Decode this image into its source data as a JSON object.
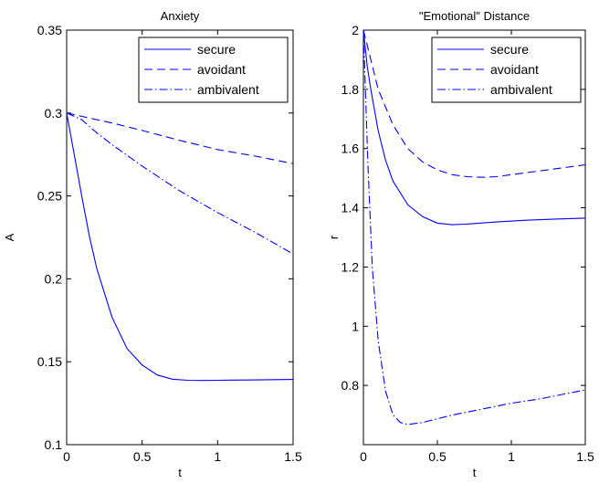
{
  "chart_data": [
    {
      "type": "line",
      "title": "Anxiety",
      "xlabel": "t",
      "ylabel": "A",
      "xlim": [
        0,
        1.5
      ],
      "ylim": [
        0.1,
        0.35
      ],
      "xticks": [
        "0",
        "0.5",
        "1",
        "1.5"
      ],
      "yticks": [
        "0.1",
        "0.15",
        "0.2",
        "0.25",
        "0.3",
        "0.35"
      ],
      "xtick_values": [
        0,
        0.5,
        1,
        1.5
      ],
      "ytick_values": [
        0.1,
        0.15,
        0.2,
        0.25,
        0.3,
        0.35
      ],
      "grid": false,
      "legend_position": "top-right",
      "series": [
        {
          "name": "secure",
          "style": "solid",
          "color": "#0000ff",
          "x": [
            0,
            0.05,
            0.1,
            0.15,
            0.2,
            0.3,
            0.4,
            0.5,
            0.6,
            0.7,
            0.8,
            0.9,
            1.0,
            1.2,
            1.5
          ],
          "y": [
            0.3,
            0.275,
            0.25,
            0.226,
            0.206,
            0.177,
            0.158,
            0.148,
            0.142,
            0.1395,
            0.1388,
            0.1387,
            0.1388,
            0.139,
            0.1393
          ]
        },
        {
          "name": "avoidant",
          "style": "dashed",
          "color": "#0000ff",
          "x": [
            0,
            0.1,
            0.3,
            0.5,
            0.75,
            1.0,
            1.25,
            1.5
          ],
          "y": [
            0.3,
            0.298,
            0.294,
            0.2895,
            0.2835,
            0.278,
            0.274,
            0.2695
          ]
        },
        {
          "name": "ambivalent",
          "style": "dashdot",
          "color": "#0000ff",
          "x": [
            0,
            0.1,
            0.2,
            0.3,
            0.5,
            0.75,
            1.0,
            1.25,
            1.5
          ],
          "y": [
            0.3,
            0.296,
            0.288,
            0.281,
            0.268,
            0.253,
            0.24,
            0.228,
            0.215
          ]
        }
      ]
    },
    {
      "type": "line",
      "title": "\"Emotional\" Distance",
      "xlabel": "t",
      "ylabel": "r",
      "xlim": [
        0,
        1.5
      ],
      "ylim": [
        0.6,
        2
      ],
      "xticks": [
        "0",
        "0.5",
        "1",
        "1.5"
      ],
      "yticks": [
        "0.8",
        "1",
        "1.2",
        "1.4",
        "1.6",
        "1.8",
        "2"
      ],
      "xtick_values": [
        0,
        0.5,
        1,
        1.5
      ],
      "ytick_values": [
        0.8,
        1,
        1.2,
        1.4,
        1.6,
        1.8,
        2
      ],
      "grid": false,
      "legend_position": "top-right",
      "series": [
        {
          "name": "secure",
          "style": "solid",
          "color": "#0000ff",
          "x": [
            0,
            0.025,
            0.05,
            0.1,
            0.15,
            0.2,
            0.3,
            0.4,
            0.5,
            0.6,
            0.7,
            0.9,
            1.1,
            1.3,
            1.5
          ],
          "y": [
            2.0,
            1.88,
            1.8,
            1.66,
            1.56,
            1.49,
            1.41,
            1.37,
            1.348,
            1.343,
            1.345,
            1.352,
            1.358,
            1.362,
            1.365
          ]
        },
        {
          "name": "avoidant",
          "style": "dashed",
          "color": "#0000ff",
          "x": [
            0,
            0.025,
            0.05,
            0.1,
            0.2,
            0.3,
            0.4,
            0.5,
            0.6,
            0.7,
            0.8,
            0.9,
            1.0,
            1.2,
            1.5
          ],
          "y": [
            2.0,
            1.95,
            1.9,
            1.8,
            1.68,
            1.6,
            1.555,
            1.528,
            1.512,
            1.505,
            1.503,
            1.505,
            1.512,
            1.525,
            1.545
          ]
        },
        {
          "name": "ambivalent",
          "style": "dashdot",
          "color": "#0000ff",
          "x": [
            0,
            0.03,
            0.06,
            0.1,
            0.15,
            0.2,
            0.25,
            0.3,
            0.4,
            0.6,
            0.8,
            1.0,
            1.2,
            1.5
          ],
          "y": [
            2.0,
            1.55,
            1.2,
            0.95,
            0.78,
            0.7,
            0.675,
            0.668,
            0.675,
            0.7,
            0.72,
            0.74,
            0.755,
            0.785
          ]
        }
      ]
    }
  ]
}
